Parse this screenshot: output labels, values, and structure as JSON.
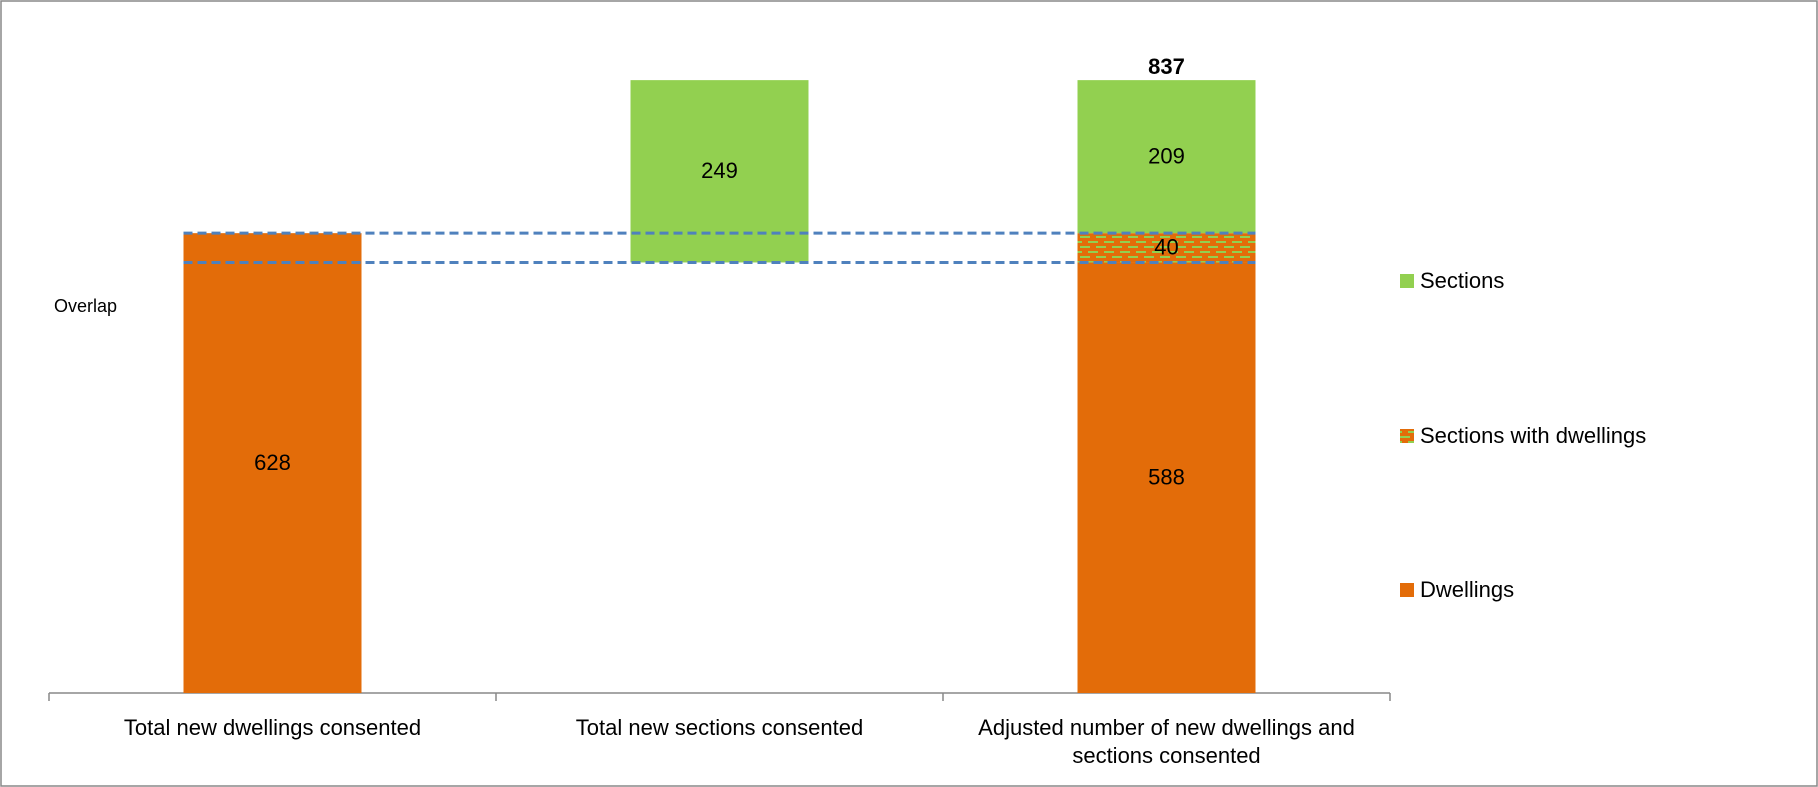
{
  "chart_data": {
    "type": "floating_stacked_bar",
    "categories": [
      "Total new dwellings consented",
      "Total new sections consented",
      "Adjusted number of new dwellings and sections consented"
    ],
    "series": [
      {
        "name": "Dwellings",
        "color": "#E36C09",
        "values": [
          628,
          null,
          588
        ]
      },
      {
        "name": "Sections with dwellings",
        "color": "#E36C09",
        "pattern_color": "#92D050",
        "values": [
          null,
          null,
          40
        ]
      },
      {
        "name": "Sections",
        "color": "#92D050",
        "values": [
          null,
          249,
          209
        ]
      }
    ],
    "total": 837,
    "annotation": "Overlap",
    "guide_color": "#4F81BD",
    "ylim": [
      0,
      900
    ],
    "legend": "right"
  }
}
